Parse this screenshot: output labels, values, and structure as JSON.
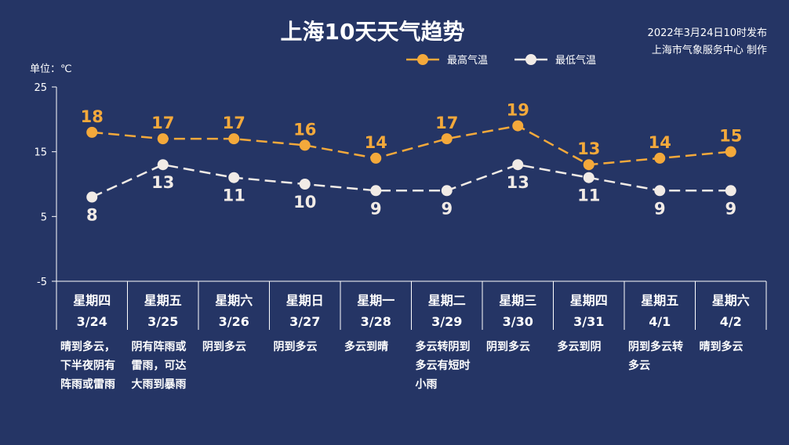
{
  "chart_data": {
    "type": "line",
    "title": "上海10天天气趋势",
    "publish_info": [
      "2022年3月24日10时发布",
      "上海市气象服务中心 制作"
    ],
    "unit_label": "单位：℃",
    "ylim": [
      -5,
      25
    ],
    "yticks": [
      "25",
      "15",
      "5",
      "-5"
    ],
    "ytick_values": [
      25,
      15,
      5,
      -5
    ],
    "legend_position": "top-center",
    "categories": [
      {
        "weekday": "星期四",
        "date": "3/24",
        "weather": "晴到多云，\n下半夜阴有\n阵雨或雷雨"
      },
      {
        "weekday": "星期五",
        "date": "3/25",
        "weather": "阴有阵雨或\n雷雨，可达\n大雨到暴雨"
      },
      {
        "weekday": "星期六",
        "date": "3/26",
        "weather": "阴到多云"
      },
      {
        "weekday": "星期日",
        "date": "3/27",
        "weather": "阴到多云"
      },
      {
        "weekday": "星期一",
        "date": "3/28",
        "weather": "多云到晴"
      },
      {
        "weekday": "星期二",
        "date": "3/29",
        "weather": "多云转阴到\n多云有短时\n小雨"
      },
      {
        "weekday": "星期三",
        "date": "3/30",
        "weather": "阴到多云"
      },
      {
        "weekday": "星期四",
        "date": "3/31",
        "weather": "多云到阴"
      },
      {
        "weekday": "星期五",
        "date": "4/1",
        "weather": "阴到多云转\n多云"
      },
      {
        "weekday": "星期六",
        "date": "4/2",
        "weather": "晴到多云"
      }
    ],
    "series": [
      {
        "name": "最高气温",
        "color": "#f4a93b",
        "values": [
          18,
          17,
          17,
          16,
          14,
          17,
          19,
          13,
          14,
          15
        ]
      },
      {
        "name": "最低气温",
        "color": "#f1ebe6",
        "values": [
          8,
          13,
          11,
          10,
          9,
          9,
          13,
          11,
          9,
          9
        ]
      }
    ]
  }
}
